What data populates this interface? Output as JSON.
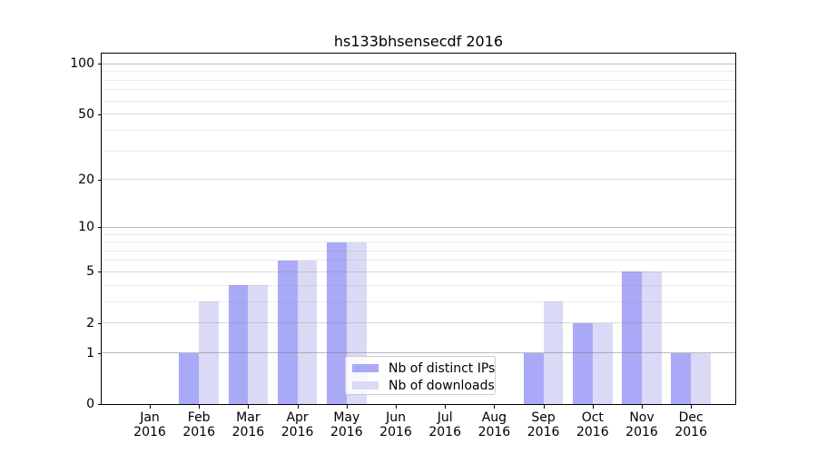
{
  "chart_data": {
    "type": "bar",
    "title": "hs133bhsensecdf 2016",
    "year": "2016",
    "months": [
      "Jan",
      "Feb",
      "Mar",
      "Apr",
      "May",
      "Jun",
      "Jul",
      "Aug",
      "Sep",
      "Oct",
      "Nov",
      "Dec"
    ],
    "series": [
      {
        "name": "Nb of distinct IPs",
        "color": "#a9a9f7",
        "values": [
          0,
          1,
          4,
          6,
          8,
          0,
          0,
          0,
          1,
          2,
          5,
          1
        ]
      },
      {
        "name": "Nb of downloads",
        "color": "#dadaf7",
        "values": [
          0,
          3,
          4,
          6,
          8,
          0,
          0,
          0,
          3,
          2,
          5,
          1
        ]
      }
    ],
    "y_axis": {
      "scale": "log1p",
      "ticks": [
        0,
        1,
        2,
        5,
        10,
        20,
        50,
        100
      ],
      "major_gridline_values": [
        1,
        10,
        100
      ],
      "minor_gridlines": [
        3,
        4,
        6,
        7,
        8,
        9,
        30,
        40,
        60,
        70,
        80,
        90
      ]
    },
    "grid": true,
    "legend": {
      "position": "lower-center",
      "entries": [
        "Nb of distinct IPs",
        "Nb of downloads"
      ]
    },
    "colors": {
      "background": "#ffffff",
      "spine": "#000000",
      "text": "#000000",
      "legend_border": "#cccccc"
    }
  }
}
